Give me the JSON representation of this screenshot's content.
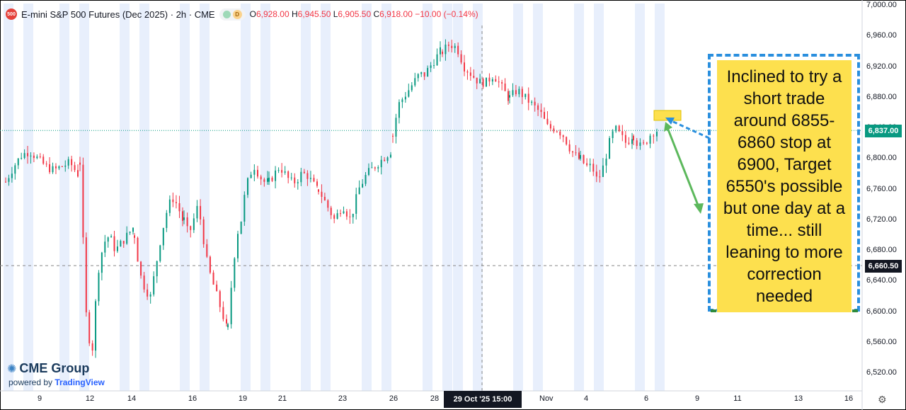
{
  "header": {
    "symbol_badge": "500",
    "title": "E-mini S&P 500 Futures (Dec 2025) · 2h · CME",
    "d_badge": "D",
    "open_label": "O",
    "open": "6,928.00",
    "high_label": "H",
    "high": "6,945.50",
    "low_label": "L",
    "low": "6,905.50",
    "close_label": "C",
    "close": "6,918.00",
    "change": "−10.00 (−0.14%)"
  },
  "branding": {
    "logo": "CME Group",
    "powered": "powered by ",
    "tv": "TradingView"
  },
  "price_axis": {
    "ticks": [
      "7,000.00",
      "6,960.00",
      "6,920.00",
      "6,880.00",
      "6,840.00",
      "6,800.00",
      "6,760.00",
      "6,720.00",
      "6,680.00",
      "6,640.00",
      "6,600.00",
      "6,560.00",
      "6,520.00"
    ],
    "current_price": "6,837.00",
    "crosshair_price": "6,660.50"
  },
  "time_axis": {
    "ticks": [
      "9",
      "12",
      "14",
      "16",
      "19",
      "21",
      "23",
      "26",
      "28",
      "Nov",
      "4",
      "6",
      "9",
      "11",
      "13",
      "16"
    ],
    "crosshair_label": "29 Oct '25   15:00"
  },
  "annotation": {
    "text": "Inclined to try a short trade around 6855-6860 stop at 6900, Target 6550's possible but one day at a time... still leaning to more correction needed"
  },
  "colors": {
    "up": "#089981",
    "down": "#f23645",
    "session_band": "#e8effc",
    "current": "#089981",
    "crosshair": "#131722",
    "note_fill": "#fde04e",
    "note_border": "#2a8fde",
    "arrow": "#5cb85c"
  },
  "chart_data": {
    "type": "candlestick",
    "ylim": [
      6500,
      7010
    ],
    "x_categories": [
      "9",
      "12",
      "14",
      "16",
      "19",
      "21",
      "23",
      "26",
      "28",
      "Nov",
      "4",
      "6",
      "9",
      "11",
      "13",
      "16"
    ],
    "series": [
      {
        "session": "9",
        "path": [
          6770,
          6790,
          6805,
          6810,
          6800,
          6790,
          6785,
          6790,
          6795,
          6780
        ]
      },
      {
        "session": "12",
        "path": [
          6795,
          6600,
          6540,
          6650,
          6690,
          6700,
          6680,
          6690,
          6700,
          6710
        ]
      },
      {
        "session": "14",
        "path": [
          6700,
          6650,
          6630,
          6620,
          6660,
          6700,
          6730,
          6750,
          6740,
          6720
        ]
      },
      {
        "session": "16",
        "path": [
          6720,
          6700,
          6720,
          6740,
          6700,
          6660,
          6640,
          6620,
          6600,
          6580
        ]
      },
      {
        "session": "19",
        "path": [
          6580,
          6650,
          6700,
          6720,
          6760,
          6780,
          6790,
          6780,
          6770,
          6770
        ]
      },
      {
        "session": "21",
        "path": [
          6770,
          6780,
          6790,
          6780,
          6770,
          6770,
          6780,
          6780,
          6770,
          6760
        ]
      },
      {
        "session": "23",
        "path": [
          6760,
          6740,
          6720,
          6740,
          6720,
          6760,
          6780,
          6790,
          6800,
          6810
        ]
      },
      {
        "session": "26",
        "path": [
          6830,
          6870,
          6880,
          6890,
          6900,
          6910,
          6910,
          6920,
          6930,
          6940
        ]
      },
      {
        "session": "28",
        "path": [
          6940,
          6950,
          6945,
          6920,
          6910,
          6900,
          6900,
          6910,
          6895,
          6880
        ]
      },
      {
        "session": "Nov",
        "path": [
          6880,
          6890,
          6880,
          6870,
          6860,
          6840,
          6840,
          6830,
          6810,
          6800
        ]
      },
      {
        "session": "4",
        "path": [
          6800,
          6790,
          6790,
          6770,
          6790,
          6820,
          6840,
          6830,
          6820,
          6830
        ]
      },
      {
        "session": "6",
        "path": [
          6830,
          6820,
          6815,
          6820,
          6830,
          6835,
          6837
        ]
      }
    ],
    "horizontal_lines": [
      {
        "price": 6837.0,
        "style": "dotted",
        "label": "6,837.00"
      },
      {
        "price": 6660.5,
        "style": "dashed",
        "label": "6,660.50"
      }
    ]
  }
}
